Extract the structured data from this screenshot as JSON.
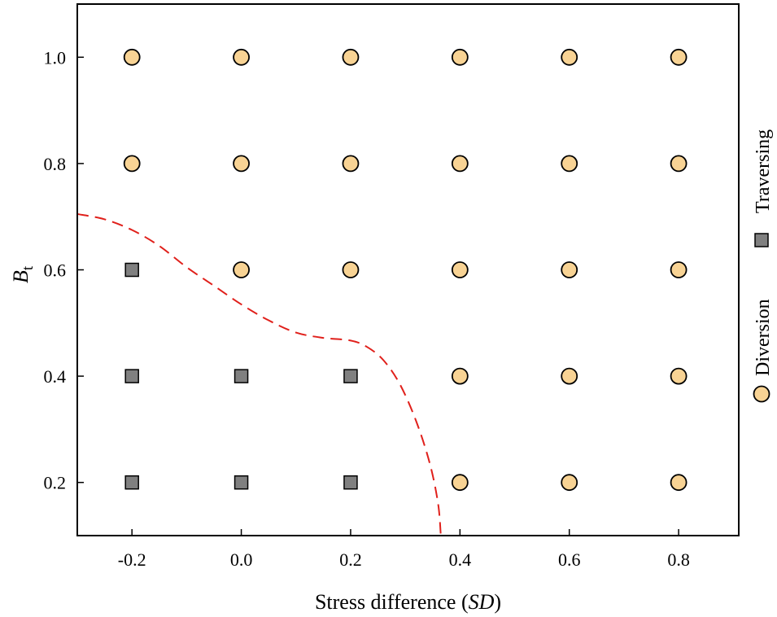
{
  "chart_data": {
    "type": "scatter",
    "title": "",
    "xlabel_prefix": "Stress difference (",
    "xlabel_italic": "SD",
    "xlabel_suffix": ")",
    "ylabel_main": "B",
    "ylabel_sub": "t",
    "xlim": [
      -0.3,
      0.91
    ],
    "ylim": [
      0.1,
      1.1
    ],
    "x_ticks": [
      -0.2,
      0.0,
      0.2,
      0.4,
      0.6,
      0.8
    ],
    "x_tick_labels": [
      "-0.2",
      "0.0",
      "0.2",
      "0.4",
      "0.6",
      "0.8"
    ],
    "y_ticks": [
      0.2,
      0.4,
      0.6,
      0.8,
      1.0
    ],
    "y_tick_labels": [
      "0.2",
      "0.4",
      "0.6",
      "0.8",
      "1.0"
    ],
    "grid": false,
    "legend_position": "right, rotated vertical",
    "series": [
      {
        "name": "Traversing",
        "marker": "square",
        "color": "#808080",
        "points": [
          [
            -0.2,
            0.6
          ],
          [
            -0.2,
            0.4
          ],
          [
            -0.2,
            0.2
          ],
          [
            0.0,
            0.4
          ],
          [
            0.0,
            0.2
          ],
          [
            0.2,
            0.4
          ],
          [
            0.2,
            0.2
          ]
        ]
      },
      {
        "name": "Diversion",
        "marker": "circle",
        "color": "#F8D394",
        "points": [
          [
            -0.2,
            1.0
          ],
          [
            0.0,
            1.0
          ],
          [
            0.2,
            1.0
          ],
          [
            0.4,
            1.0
          ],
          [
            0.6,
            1.0
          ],
          [
            0.8,
            1.0
          ],
          [
            -0.2,
            0.8
          ],
          [
            0.0,
            0.8
          ],
          [
            0.2,
            0.8
          ],
          [
            0.4,
            0.8
          ],
          [
            0.6,
            0.8
          ],
          [
            0.8,
            0.8
          ],
          [
            0.0,
            0.6
          ],
          [
            0.2,
            0.6
          ],
          [
            0.4,
            0.6
          ],
          [
            0.6,
            0.6
          ],
          [
            0.8,
            0.6
          ],
          [
            0.4,
            0.4
          ],
          [
            0.6,
            0.4
          ],
          [
            0.8,
            0.4
          ],
          [
            0.4,
            0.2
          ],
          [
            0.6,
            0.2
          ],
          [
            0.8,
            0.2
          ]
        ]
      }
    ],
    "boundary": {
      "style": "dashed",
      "color": "#E0201B",
      "points": [
        [
          -0.3,
          0.705
        ],
        [
          -0.25,
          0.695
        ],
        [
          -0.2,
          0.675
        ],
        [
          -0.15,
          0.645
        ],
        [
          -0.1,
          0.605
        ],
        [
          -0.05,
          0.57
        ],
        [
          0.0,
          0.535
        ],
        [
          0.05,
          0.505
        ],
        [
          0.1,
          0.482
        ],
        [
          0.15,
          0.472
        ],
        [
          0.2,
          0.467
        ],
        [
          0.23,
          0.455
        ],
        [
          0.26,
          0.43
        ],
        [
          0.29,
          0.385
        ],
        [
          0.32,
          0.315
        ],
        [
          0.345,
          0.235
        ],
        [
          0.36,
          0.16
        ],
        [
          0.365,
          0.1
        ]
      ]
    }
  }
}
